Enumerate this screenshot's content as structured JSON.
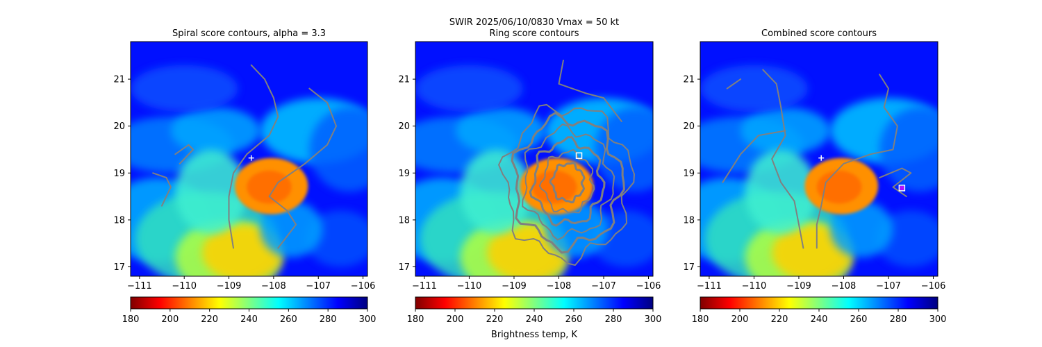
{
  "figure": {
    "suptitle": "SWIR  2025/06/10/0830    Vmax = 50 kt",
    "colorbar_label": "Brightness temp, K"
  },
  "colors": {
    "contour": "#808080",
    "marker": "#ffffff",
    "combined_marker": "#ff00ff",
    "colormap": [
      "#800000",
      "#ff0000",
      "#ff8000",
      "#ffff00",
      "#80ff80",
      "#00ffff",
      "#0080ff",
      "#0000ff",
      "#000080"
    ]
  },
  "chart_data": [
    {
      "type": "heatmap",
      "title": "Spiral score contours, alpha =  3.3",
      "xlim": [
        -111.2,
        -105.9
      ],
      "ylim": [
        16.8,
        21.8
      ],
      "xticks": [
        -111,
        -110,
        -109,
        -108,
        -107,
        -106
      ],
      "yticks": [
        17,
        18,
        19,
        20,
        21
      ],
      "colorbar": {
        "range": [
          180,
          300
        ],
        "ticks": [
          180,
          200,
          220,
          240,
          260,
          280,
          300
        ],
        "cmap": "jet_r"
      },
      "grid": false,
      "markers": [
        {
          "shape": "plus",
          "x": -108.5,
          "y": 19.32
        }
      ],
      "contours": [
        [
          [
            -108.5,
            21.3
          ],
          [
            -108.2,
            21.0
          ],
          [
            -108.0,
            20.6
          ],
          [
            -107.9,
            20.2
          ],
          [
            -108.1,
            19.8
          ],
          [
            -108.6,
            19.4
          ],
          [
            -108.9,
            19.0
          ],
          [
            -109.0,
            18.5
          ],
          [
            -109.0,
            18.0
          ],
          [
            -108.9,
            17.4
          ]
        ],
        [
          [
            -107.2,
            20.8
          ],
          [
            -106.8,
            20.5
          ],
          [
            -106.6,
            20.0
          ],
          [
            -106.8,
            19.6
          ],
          [
            -107.3,
            19.2
          ],
          [
            -107.9,
            18.8
          ],
          [
            -108.1,
            18.5
          ],
          [
            -107.7,
            18.2
          ],
          [
            -107.5,
            17.9
          ],
          [
            -107.9,
            17.4
          ]
        ],
        [
          [
            -110.5,
            18.3
          ],
          [
            -110.3,
            18.7
          ],
          [
            -110.4,
            18.9
          ],
          [
            -110.7,
            19.0
          ]
        ],
        [
          [
            -110.1,
            19.2
          ],
          [
            -109.8,
            19.5
          ],
          [
            -109.9,
            19.6
          ],
          [
            -110.2,
            19.4
          ]
        ]
      ]
    },
    {
      "type": "heatmap",
      "title": "Ring score contours",
      "xlim": [
        -111.2,
        -105.9
      ],
      "ylim": [
        16.8,
        21.8
      ],
      "xticks": [
        -111,
        -110,
        -109,
        -108,
        -107,
        -106
      ],
      "yticks": [
        17,
        18,
        19,
        20,
        21
      ],
      "colorbar": {
        "range": [
          180,
          300
        ],
        "ticks": [
          180,
          200,
          220,
          240,
          260,
          280,
          300
        ],
        "cmap": "jet_r"
      },
      "grid": false,
      "markers": [
        {
          "shape": "square",
          "x": -107.55,
          "y": 19.37
        }
      ],
      "contour_region": {
        "center": [
          -107.8,
          18.8
        ],
        "rx": 1.4,
        "ry": 1.6,
        "top": 21.4
      }
    },
    {
      "type": "heatmap",
      "title": "Combined score contours",
      "xlim": [
        -111.2,
        -105.9
      ],
      "ylim": [
        16.8,
        21.8
      ],
      "xticks": [
        -111,
        -110,
        -109,
        -108,
        -107,
        -106
      ],
      "yticks": [
        17,
        18,
        19,
        20,
        21
      ],
      "colorbar": {
        "range": [
          180,
          300
        ],
        "ticks": [
          180,
          200,
          220,
          240,
          260,
          280,
          300
        ],
        "cmap": "jet_r"
      },
      "grid": false,
      "markers": [
        {
          "shape": "plus",
          "x": -108.5,
          "y": 19.32
        },
        {
          "shape": "square",
          "x": -106.7,
          "y": 18.68
        }
      ],
      "contours": [
        [
          [
            -109.8,
            21.2
          ],
          [
            -109.5,
            20.9
          ],
          [
            -109.4,
            20.4
          ],
          [
            -109.3,
            19.8
          ],
          [
            -109.6,
            19.3
          ],
          [
            -109.4,
            18.8
          ],
          [
            -109.1,
            18.4
          ],
          [
            -109.0,
            17.9
          ],
          [
            -108.9,
            17.4
          ]
        ],
        [
          [
            -107.2,
            21.1
          ],
          [
            -107.0,
            20.8
          ],
          [
            -107.1,
            20.4
          ],
          [
            -106.8,
            20.0
          ],
          [
            -106.9,
            19.5
          ],
          [
            -107.4,
            19.4
          ],
          [
            -108.0,
            19.2
          ],
          [
            -108.4,
            18.8
          ],
          [
            -108.5,
            18.3
          ],
          [
            -108.6,
            17.9
          ],
          [
            -108.6,
            17.4
          ]
        ],
        [
          [
            -110.6,
            20.8
          ],
          [
            -110.3,
            21.0
          ]
        ],
        [
          [
            -110.7,
            18.8
          ],
          [
            -110.3,
            19.4
          ],
          [
            -109.9,
            19.8
          ],
          [
            -109.3,
            19.9
          ]
        ],
        [
          [
            -107.2,
            18.9
          ],
          [
            -106.7,
            19.1
          ],
          [
            -106.5,
            19.0
          ],
          [
            -106.9,
            18.7
          ],
          [
            -106.6,
            18.5
          ]
        ]
      ]
    }
  ]
}
